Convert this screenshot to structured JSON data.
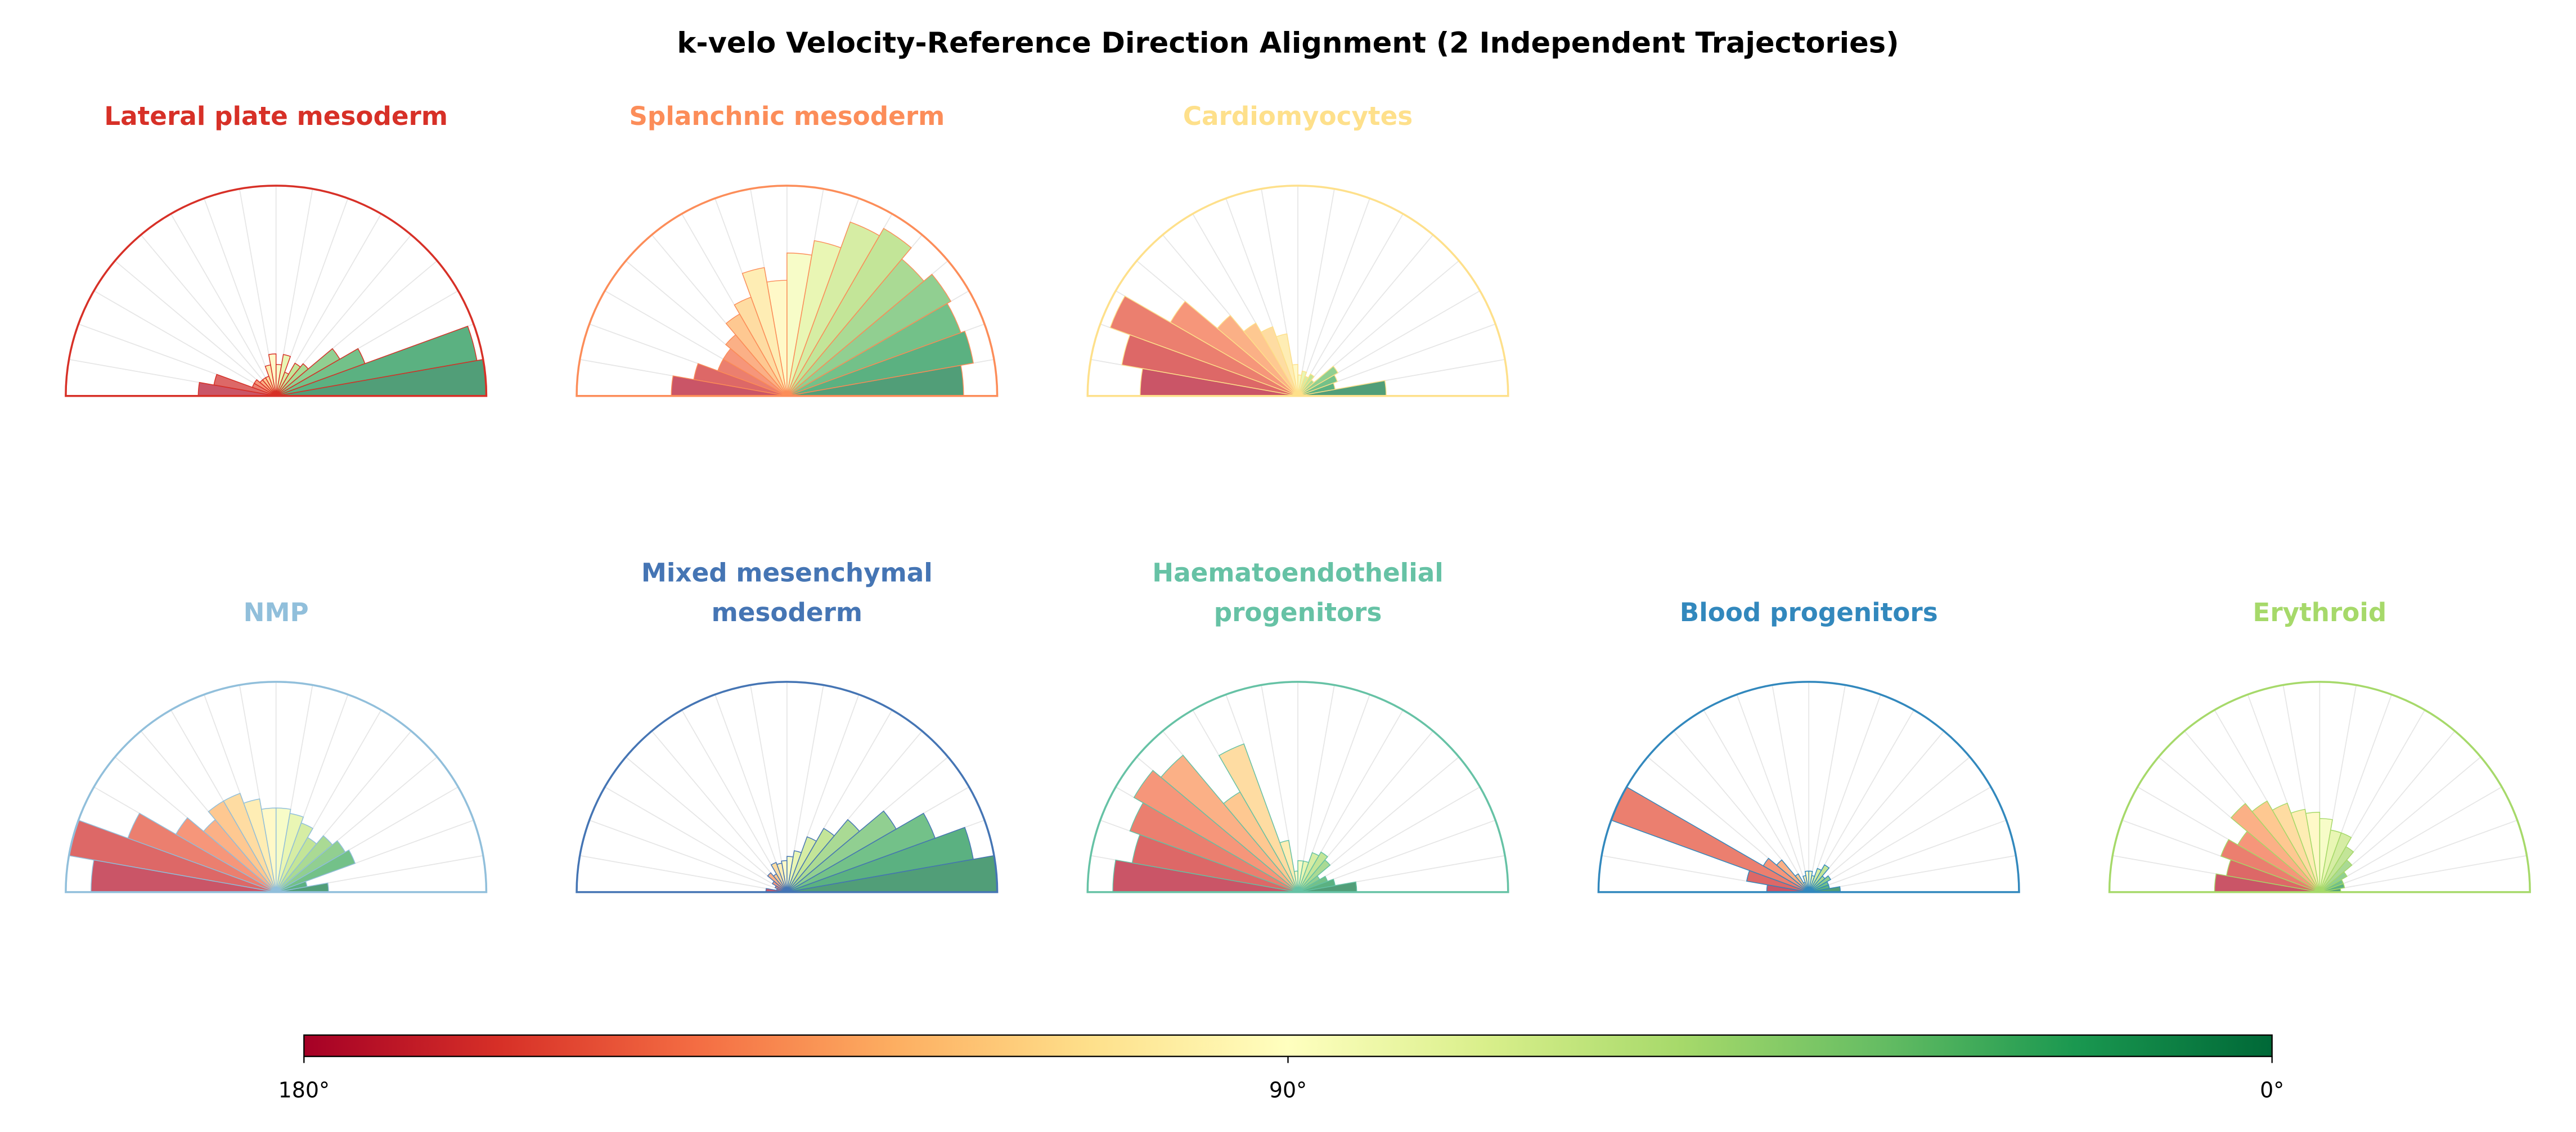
{
  "chart_data": {
    "type": "polar-histogram",
    "title": "k-velo Velocity-Reference Direction Alignment (2 Independent Trajectories)",
    "angle_range_deg": [
      0,
      180
    ],
    "bin_width_deg": 10,
    "value_units": "relative frequency (normalized to panel max)",
    "bins_order": "0-10° first ... 170-180° last",
    "colormap": "RdYlGn (180°=red, 90°=yellow, 0°=green)",
    "colorbar": {
      "ticks": [
        "180°",
        "90°",
        "0°"
      ],
      "tick_values": [
        180,
        90,
        0
      ]
    },
    "panels": [
      {
        "title": "Lateral plate mesoderm",
        "color": "#d73027",
        "values": [
          1.0,
          0.97,
          0.45,
          0.35,
          0.2,
          0.18,
          0.12,
          0.2,
          0.15,
          0.2,
          0.15,
          0.1,
          0.1,
          0.1,
          0.12,
          0.12,
          0.3,
          0.37
        ]
      },
      {
        "title": "Splanchnic mesoderm",
        "color": "#fc8d59",
        "values": [
          0.84,
          0.9,
          0.88,
          0.9,
          0.85,
          0.92,
          0.88,
          0.75,
          0.68,
          0.55,
          0.62,
          0.5,
          0.45,
          0.38,
          0.35,
          0.35,
          0.45,
          0.55
        ]
      },
      {
        "title": "Cardiomyocytes",
        "color": "#fee08b",
        "values": [
          0.42,
          0.18,
          0.2,
          0.22,
          0.1,
          0.12,
          0.1,
          0.12,
          0.1,
          0.15,
          0.3,
          0.35,
          0.4,
          0.5,
          0.7,
          0.95,
          0.85,
          0.75
        ]
      },
      {
        "title": "NMP",
        "color": "#91bfdb",
        "values": [
          0.25,
          0.15,
          0.4,
          0.38,
          0.35,
          0.3,
          0.35,
          0.38,
          0.4,
          0.4,
          0.45,
          0.5,
          0.5,
          0.45,
          0.55,
          0.75,
          1.0,
          0.88
        ]
      },
      {
        "title": "Mixed mesenchymal\nmesoderm",
        "color": "#4575b4",
        "values": [
          1.0,
          0.9,
          0.75,
          0.6,
          0.45,
          0.35,
          0.28,
          0.2,
          0.17,
          0.15,
          0.14,
          0.15,
          0.1,
          0.12,
          0.08,
          0.06,
          0.05,
          0.1
        ]
      },
      {
        "title": "Haematoendothelial\nprogenitors",
        "color": "#66c2a5",
        "values": [
          0.28,
          0.18,
          0.15,
          0.12,
          0.2,
          0.22,
          0.2,
          0.15,
          0.15,
          0.1,
          0.25,
          0.75,
          0.55,
          0.85,
          0.9,
          0.85,
          0.8,
          0.88
        ]
      },
      {
        "title": "Blood progenitors",
        "color": "#3288bd",
        "values": [
          0.15,
          0.1,
          0.1,
          0.12,
          0.1,
          0.15,
          0.12,
          0.08,
          0.1,
          0.1,
          0.08,
          0.05,
          0.1,
          0.2,
          0.25,
          1.0,
          0.3,
          0.2
        ]
      },
      {
        "title": "Erythroid",
        "color": "#a6d96a",
        "values": [
          0.1,
          0.12,
          0.12,
          0.15,
          0.2,
          0.25,
          0.3,
          0.3,
          0.35,
          0.38,
          0.4,
          0.45,
          0.5,
          0.55,
          0.45,
          0.5,
          0.45,
          0.5
        ]
      }
    ]
  }
}
